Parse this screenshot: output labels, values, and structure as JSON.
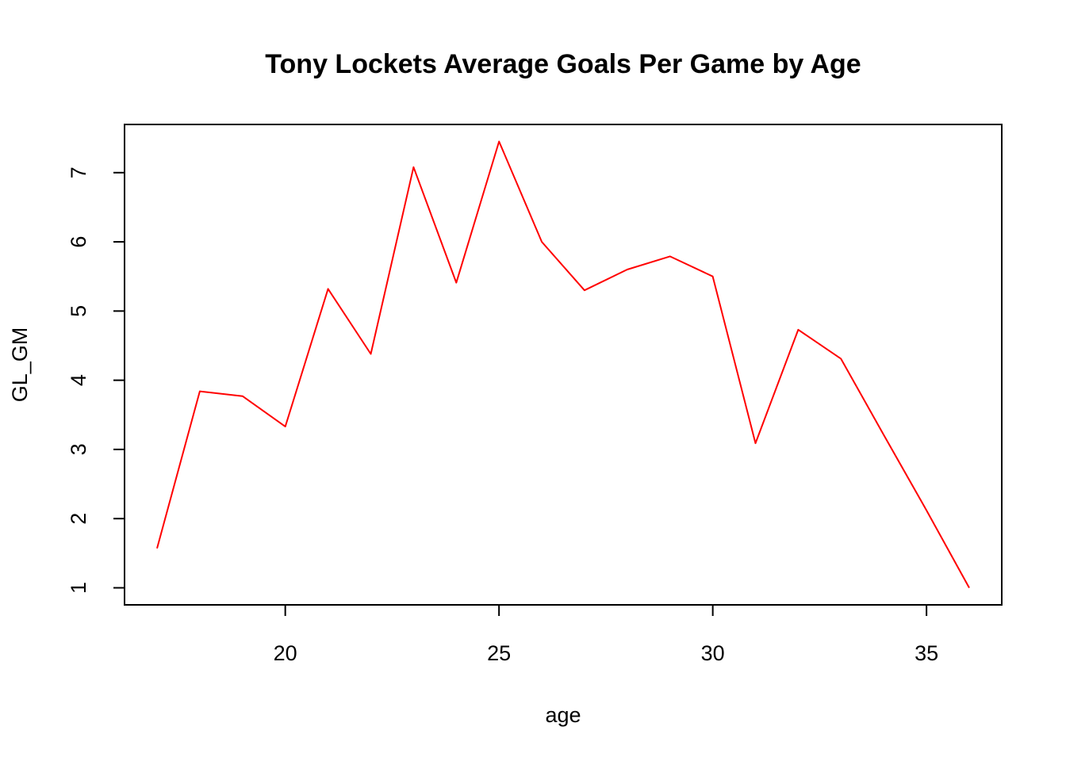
{
  "chart_data": {
    "type": "line",
    "title": "Tony Lockets Average Goals Per Game by Age",
    "xlabel": "age",
    "ylabel": "GL_GM",
    "x": [
      17,
      18,
      19,
      20,
      21,
      22,
      23,
      24,
      25,
      26,
      27,
      28,
      29,
      30,
      31,
      32,
      33,
      34,
      35,
      36
    ],
    "series": [
      {
        "values": [
          1.57,
          3.84,
          3.77,
          3.33,
          5.32,
          4.38,
          7.08,
          5.41,
          7.45,
          6.0,
          5.3,
          5.6,
          5.79,
          5.5,
          3.09,
          4.73,
          4.31,
          3.21,
          2.12,
          1.0
        ],
        "color": "#ff0000"
      }
    ],
    "xlim": [
      16.24,
      36.76
    ],
    "ylim": [
      0.7535,
      7.6965
    ],
    "xticks": [
      20,
      25,
      30,
      35
    ],
    "yticks": [
      1,
      2,
      3,
      4,
      5,
      6,
      7
    ],
    "grid": false,
    "legend": "none"
  }
}
